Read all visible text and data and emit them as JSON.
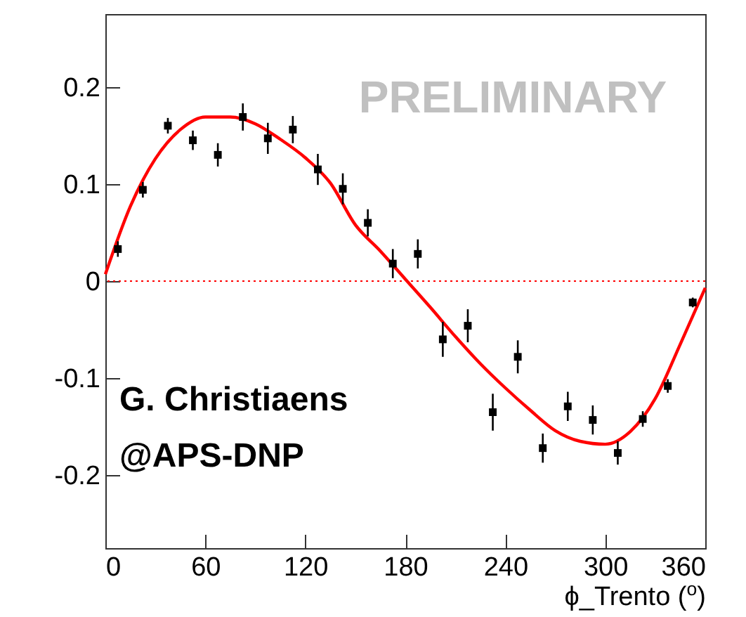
{
  "chart_data": {
    "type": "scatter",
    "xlabel": "ϕ_Trento ($^{o}$)",
    "x": [
      7.5,
      22.5,
      37.5,
      52.5,
      67.5,
      82.5,
      97.5,
      112.5,
      127.5,
      142.5,
      157.5,
      172.5,
      187.5,
      202.5,
      217.5,
      232.5,
      247.5,
      262.5,
      277.5,
      292.5,
      307.5,
      322.5,
      337.5,
      352.5
    ],
    "series": [
      {
        "color": "#000000",
        "marker": "square",
        "values": [
          0.033,
          0.094,
          0.16,
          0.145,
          0.13,
          0.169,
          0.147,
          0.156,
          0.115,
          0.095,
          0.06,
          0.018,
          0.028,
          -0.06,
          -0.046,
          -0.135,
          -0.078,
          -0.172,
          -0.129,
          -0.143,
          -0.177,
          -0.142,
          -0.108,
          -0.022
        ],
        "errors": [
          0.008,
          0.008,
          0.008,
          0.01,
          0.012,
          0.014,
          0.016,
          0.014,
          0.016,
          0.016,
          0.014,
          0.015,
          0.015,
          0.018,
          0.017,
          0.019,
          0.017,
          0.015,
          0.015,
          0.015,
          0.012,
          0.008,
          0.007,
          0.005
        ]
      },
      {
        "type": "line",
        "color": "#ff0000",
        "line_style": "solid",
        "x": [
          0,
          15,
          30,
          45,
          60,
          75,
          90,
          105,
          120,
          135,
          150,
          165,
          180,
          195,
          210,
          225,
          240,
          255,
          270,
          285,
          300,
          315,
          330,
          345,
          360
        ],
        "values": [
          0.007,
          0.077,
          0.126,
          0.156,
          0.169,
          0.169,
          0.162,
          0.146,
          0.127,
          0.101,
          0.058,
          0.031,
          0.002,
          -0.027,
          -0.057,
          -0.085,
          -0.11,
          -0.133,
          -0.154,
          -0.165,
          -0.168,
          -0.155,
          -0.121,
          -0.065,
          -0.007
        ]
      }
    ],
    "xlim": [
      0,
      360
    ],
    "xticks": [
      0,
      60,
      120,
      180,
      240,
      300,
      360
    ],
    "ylim": [
      -0.275,
      0.275
    ],
    "yticks": [
      -0.2,
      -0.1,
      0,
      0.1,
      0.2
    ],
    "grid": false,
    "ref_lines": [
      {
        "axis": "y",
        "value": 0,
        "color": "#ff0000",
        "line_style": "dotted"
      }
    ],
    "annotations": [
      "PRELIMINARY",
      "G. Christiaens",
      "@APS-DNP"
    ]
  }
}
